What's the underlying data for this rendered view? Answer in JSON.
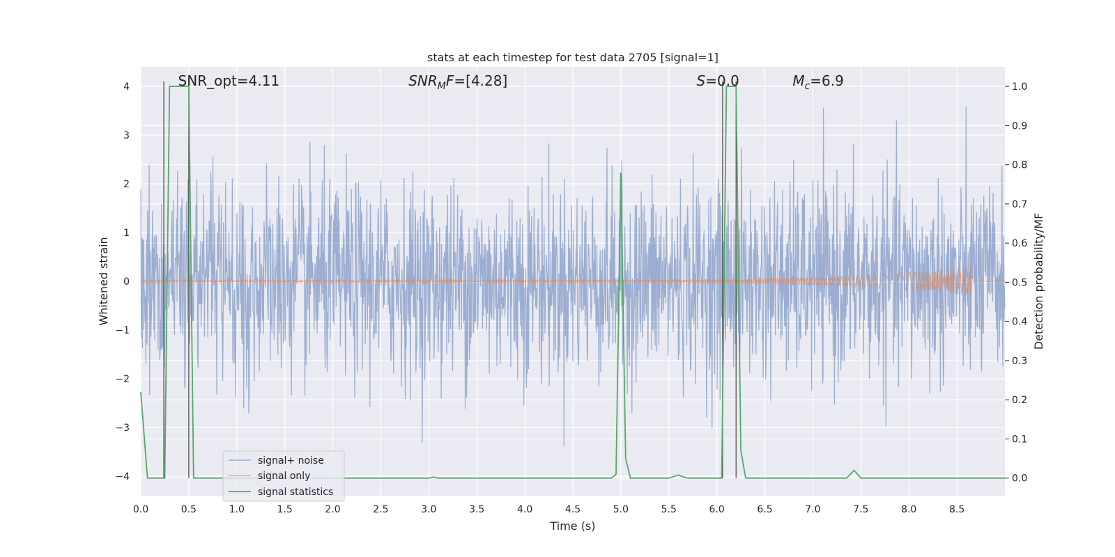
{
  "chart_data": {
    "type": "line",
    "title": "stats at each timestep for test data 2705 [signal=1]",
    "xlabel": "Time (s)",
    "ylabel": "Whitened strain",
    "ylabel_right": "Detection probability/MF",
    "xlim": [
      0.0,
      9.0
    ],
    "ylim": [
      -4.4,
      4.4
    ],
    "ylim_right": [
      -0.045,
      1.05
    ],
    "x_ticks": [
      0.0,
      0.5,
      1.0,
      1.5,
      2.0,
      2.5,
      3.0,
      3.5,
      4.0,
      4.5,
      5.0,
      5.5,
      6.0,
      6.5,
      7.0,
      7.5,
      8.0,
      8.5
    ],
    "x_tick_labels": [
      "0.0",
      "0.5",
      "1.0",
      "1.5",
      "2.0",
      "2.5",
      "3.0",
      "3.5",
      "4.0",
      "4.5",
      "5.0",
      "5.5",
      "6.0",
      "6.5",
      "7.0",
      "7.5",
      "8.0",
      "8.5"
    ],
    "y_ticks": [
      -4,
      -3,
      -2,
      -1,
      0,
      1,
      2,
      3,
      4
    ],
    "y_tick_labels": [
      "−4",
      "−3",
      "−2",
      "−1",
      "0",
      "1",
      "2",
      "3",
      "4"
    ],
    "y_ticks_right": [
      0.0,
      0.1,
      0.2,
      0.3,
      0.4,
      0.5,
      0.6,
      0.7,
      0.8,
      0.9,
      1.0
    ],
    "y_tick_labels_right": [
      "0.0",
      "0.1",
      "0.2",
      "0.3",
      "0.4",
      "0.5",
      "0.6",
      "0.7",
      "0.8",
      "0.9",
      "1.0"
    ],
    "grid": true,
    "legend_position": "lower-left",
    "series": [
      {
        "name": "signal+ noise",
        "color": "#4c72b0",
        "kind": "noise",
        "amplitude_std": 1.0,
        "samples": 2048
      },
      {
        "name": "signal only",
        "color": "#dd8452",
        "kind": "chirp",
        "end_time": 8.65,
        "peak_amplitude": 0.5
      },
      {
        "name": "signal statistics",
        "color": "#55a868",
        "axis": "right",
        "x": [
          0.0,
          0.07,
          0.22,
          0.25,
          0.3,
          0.5,
          0.55,
          0.6,
          3.0,
          3.05,
          3.1,
          4.9,
          4.95,
          5.0,
          5.05,
          5.1,
          5.5,
          5.6,
          5.65,
          5.7,
          5.95,
          6.05,
          6.1,
          6.15,
          6.2,
          6.25,
          6.3,
          6.6,
          6.7,
          7.3,
          7.35,
          7.43,
          7.5,
          8.0,
          9.0
        ],
        "y": [
          0.22,
          0.0,
          0.0,
          0.0,
          1.0,
          1.0,
          0.0,
          0.0,
          0.0,
          0.003,
          0.0,
          0.0,
          0.01,
          0.78,
          0.05,
          0.0,
          0.0,
          0.008,
          0.003,
          0.0,
          0.0,
          0.0,
          1.0,
          1.0,
          1.0,
          0.07,
          0.0,
          0.0,
          0.0,
          0.0,
          0.0,
          0.02,
          0.0,
          0.0,
          0.0
        ]
      }
    ],
    "vertical_lines": [
      0.24,
      0.5,
      6.06,
      6.2
    ],
    "annotations": [
      {
        "text": "SNR_opt=4.11",
        "x": 0.2,
        "style": "normal"
      },
      {
        "italic": "SNR",
        "sub": "M",
        "italic2": "F",
        "rest": "=[4.28]",
        "x": 2.6,
        "style": "mixed"
      },
      {
        "italic": "S",
        "rest": "=0.0",
        "x": 5.6,
        "style": "mixed"
      },
      {
        "italic": "M",
        "sub": "c",
        "rest": "=6.9",
        "x": 6.6,
        "style": "mixed"
      }
    ]
  }
}
